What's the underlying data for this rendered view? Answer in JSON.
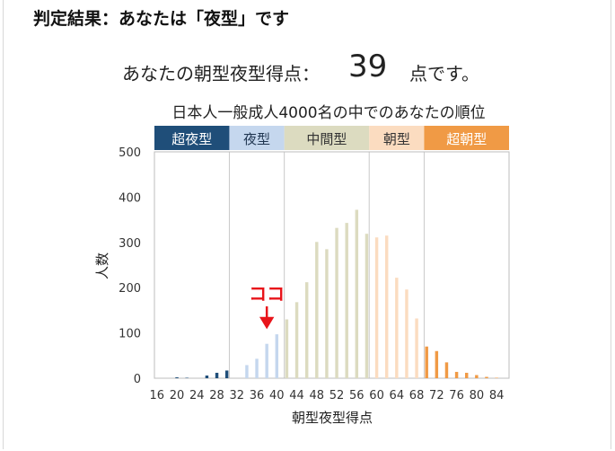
{
  "header": {
    "title": "判定結果：あなたは「夜型」です"
  },
  "score": {
    "prefix": "あなたの朝型夜型得点：",
    "value": "39",
    "suffix": "点です。"
  },
  "colors": {
    "super_night": "#1f4e79",
    "night": "#c5d7ee",
    "middle": "#dcdbc0",
    "morning": "#fbdcc0",
    "super_morning": "#f09a45"
  },
  "chart_data": {
    "type": "bar",
    "title": "日本人一般成人4000名の中でのあなたの順位",
    "xlabel": "朝型夜型得点",
    "ylabel": "人数",
    "ylim": [
      0,
      500
    ],
    "yticks": [
      0,
      100,
      200,
      300,
      400,
      500
    ],
    "xticks": [
      "16",
      "20",
      "24",
      "28",
      "32",
      "36",
      "40",
      "44",
      "48",
      "52",
      "56",
      "60",
      "64",
      "68",
      "72",
      "76",
      "80",
      "84"
    ],
    "grid": false,
    "x": [
      16,
      17,
      18,
      19,
      20,
      21,
      22,
      23,
      24,
      25,
      26,
      27,
      28,
      29,
      30,
      31,
      32,
      33,
      34,
      35,
      36,
      37,
      38,
      39,
      40,
      41,
      42,
      43,
      44,
      45,
      46,
      47,
      48,
      49,
      50,
      51,
      52,
      53,
      54,
      55,
      56,
      57,
      58,
      59,
      60,
      61,
      62,
      63,
      64,
      65,
      66,
      67,
      68,
      69,
      70,
      71,
      72,
      73,
      74,
      75,
      76,
      77,
      78,
      79,
      80,
      81,
      82,
      83,
      84,
      85,
      86
    ],
    "values": [
      0,
      0,
      0,
      0,
      2,
      0,
      1,
      0,
      0,
      0,
      6,
      0,
      12,
      0,
      17,
      0,
      0,
      0,
      29,
      0,
      43,
      0,
      76,
      0,
      97,
      0,
      130,
      0,
      168,
      0,
      212,
      0,
      301,
      0,
      285,
      0,
      332,
      0,
      343,
      0,
      372,
      0,
      319,
      0,
      311,
      0,
      315,
      0,
      222,
      0,
      196,
      0,
      132,
      0,
      70,
      0,
      60,
      0,
      35,
      0,
      14,
      0,
      12,
      0,
      7,
      0,
      3,
      0,
      1,
      0,
      0
    ],
    "categories": [
      {
        "label": "超夜型",
        "range": [
          16,
          30
        ]
      },
      {
        "label": "夜型",
        "range": [
          31,
          41
        ]
      },
      {
        "label": "中間型",
        "range": [
          42,
          58
        ]
      },
      {
        "label": "朝型",
        "range": [
          59,
          69
        ]
      },
      {
        "label": "超朝型",
        "range": [
          70,
          86
        ]
      }
    ],
    "annotation": {
      "text": "ココ",
      "x": 38
    }
  }
}
